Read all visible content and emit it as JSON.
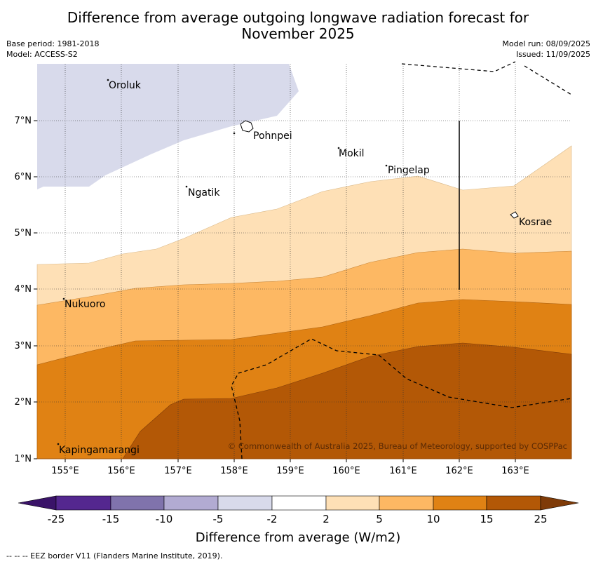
{
  "header": {
    "title_line1": "Difference from average outgoing longwave radiation forecast for",
    "title_line2": "November 2025",
    "base_period": "Base period: 1981-2018",
    "model": "Model: ACCESS-S2",
    "model_run": "Model run: 08/09/2025",
    "issued": "Issued: 11/09/2025"
  },
  "map": {
    "x_ticks": [
      "155°E",
      "156°E",
      "157°E",
      "158°E",
      "159°E",
      "160°E",
      "161°E",
      "162°E",
      "163°E"
    ],
    "y_ticks": [
      "1°N",
      "2°N",
      "3°N",
      "4°N",
      "5°N",
      "6°N",
      "7°N"
    ],
    "islands": [
      "Oroluk",
      "Pohnpei",
      "Mokil",
      "Pingelap",
      "Ngatik",
      "Kosrae",
      "Nukuoro",
      "Kapingamarangi"
    ],
    "copyright": "© Commonwealth of Australia 2025, Bureau of Meteorology, supported by COSPPac"
  },
  "colorbar": {
    "tick_labels": [
      "-25",
      "-15",
      "-10",
      "-5",
      "-2",
      "2",
      "5",
      "10",
      "15",
      "25"
    ],
    "colors": [
      "#3a1368",
      "#54278f",
      "#8073ac",
      "#b2abd2",
      "#d8daeb",
      "#ffffff",
      "#fee0b6",
      "#fdb863",
      "#e08214",
      "#b35806",
      "#7f3b08"
    ],
    "label": "Difference from average (W/m2)"
  },
  "footnote": "--  --  -- EEZ border V11 (Flanders Marine Institute, 2019)."
}
